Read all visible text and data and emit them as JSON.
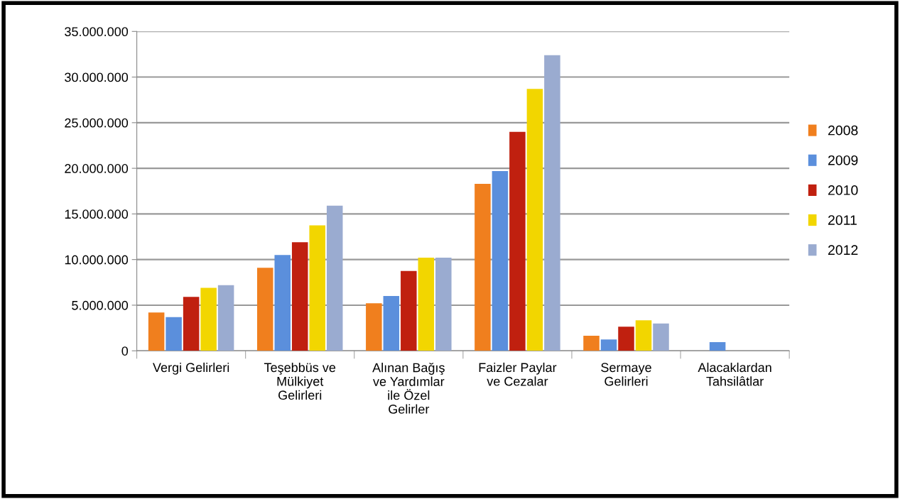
{
  "chart_data": {
    "type": "bar",
    "categories": [
      "Vergi Gelirleri",
      "Teşebbüs ve\nMülkiyet\nGelirleri",
      "Alınan Bağış\nve Yardımlar\nile Özel\nGelirler",
      "Faizler Paylar\nve Cezalar",
      "Sermaye\nGelirleri",
      "Alacaklardan\nTahsilâtlar"
    ],
    "series": [
      {
        "name": "2008",
        "color": "#f07f1e",
        "values": [
          4200000,
          9100000,
          5200000,
          18300000,
          1650000,
          null
        ]
      },
      {
        "name": "2009",
        "color": "#5b8fdc",
        "values": [
          3700000,
          10500000,
          6000000,
          19700000,
          1250000,
          950000
        ]
      },
      {
        "name": "2010",
        "color": "#c0200f",
        "values": [
          5900000,
          11900000,
          8750000,
          24000000,
          2650000,
          null
        ]
      },
      {
        "name": "2011",
        "color": "#f2d600",
        "values": [
          6900000,
          13750000,
          10200000,
          28700000,
          3350000,
          null
        ]
      },
      {
        "name": "2012",
        "color": "#9aabd0",
        "values": [
          7200000,
          15900000,
          10200000,
          32400000,
          3000000,
          null
        ]
      }
    ],
    "ylim": [
      0,
      35000000
    ],
    "yticks": [
      {
        "value": 0,
        "label": "0"
      },
      {
        "value": 5000000,
        "label": "5.000.000"
      },
      {
        "value": 10000000,
        "label": "10.000.000"
      },
      {
        "value": 15000000,
        "label": "15.000.000"
      },
      {
        "value": 20000000,
        "label": "20.000.000"
      },
      {
        "value": 25000000,
        "label": "25.000.000"
      },
      {
        "value": 30000000,
        "label": "30.000.000"
      },
      {
        "value": 35000000,
        "label": "35.000.000"
      }
    ],
    "grid": "y",
    "legend": "right"
  }
}
